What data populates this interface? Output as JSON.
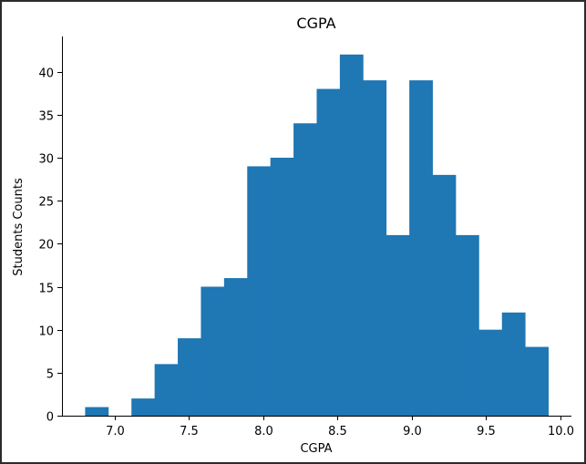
{
  "chart_data": {
    "type": "bar",
    "title": "CGPA",
    "xlabel": "CGPA",
    "ylabel": "Students Counts",
    "bin_edges": [
      6.8,
      6.956,
      7.112,
      7.268,
      7.424,
      7.58,
      7.736,
      7.892,
      8.048,
      8.204,
      8.36,
      8.516,
      8.672,
      8.828,
      8.984,
      9.14,
      9.296,
      9.452,
      9.608,
      9.764,
      9.92
    ],
    "values": [
      1,
      0,
      2,
      6,
      9,
      15,
      16,
      29,
      30,
      34,
      38,
      42,
      39,
      21,
      39,
      28,
      21,
      10,
      12,
      8
    ],
    "bar_color": "#1f77b4",
    "xlim": [
      6.644,
      10.076
    ],
    "ylim": [
      0,
      44.1
    ],
    "xticks": [
      7.0,
      7.5,
      8.0,
      8.5,
      9.0,
      9.5,
      10.0
    ],
    "xtick_labels": [
      "7.0",
      "7.5",
      "8.0",
      "8.5",
      "9.0",
      "9.5",
      "10.0"
    ],
    "yticks": [
      0,
      5,
      10,
      15,
      20,
      25,
      30,
      35,
      40
    ],
    "ytick_labels": [
      "0",
      "5",
      "10",
      "15",
      "20",
      "25",
      "30",
      "35",
      "40"
    ],
    "grid": false,
    "spines": [
      "left",
      "bottom"
    ]
  }
}
